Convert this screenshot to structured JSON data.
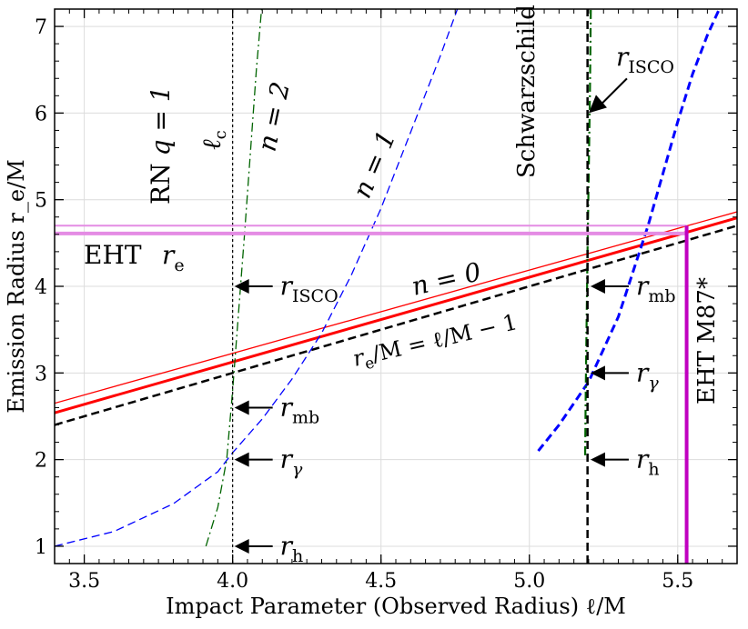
{
  "chart_data": {
    "type": "line",
    "xlabel": "Impact Parameter (Observed Radius) ℓ/M",
    "ylabel": "Emission Radius r_e/M",
    "xlim": [
      3.4,
      5.7
    ],
    "ylim": [
      0.8,
      7.2
    ],
    "grid": true,
    "xticks": [
      3.5,
      4.0,
      4.5,
      5.0,
      5.5
    ],
    "xtick_labels": [
      "3.5",
      "4.0",
      "4.5",
      "5.0",
      "5.5"
    ],
    "yticks": [
      1,
      2,
      3,
      4,
      5,
      6,
      7
    ],
    "ytick_labels": [
      "1",
      "2",
      "3",
      "4",
      "5",
      "6",
      "7"
    ],
    "series": [
      {
        "name": "RN n=0 (thin red)",
        "color": "#ff0000",
        "style": "solid",
        "width": 1.3,
        "x": [
          3.4,
          5.7
        ],
        "y": [
          2.65,
          4.86
        ]
      },
      {
        "name": "RN n=0 (thick red)",
        "color": "#ff0000",
        "style": "solid",
        "width": 3,
        "x": [
          3.4,
          5.7
        ],
        "y": [
          2.54,
          4.79
        ]
      },
      {
        "name": "re/M = ℓ/M − 1",
        "color": "#000000",
        "style": "dashed",
        "width": 2.5,
        "x": [
          3.4,
          5.7
        ],
        "y": [
          2.4,
          4.7
        ]
      },
      {
        "name": "RN n=1",
        "color": "#0000ff",
        "style": "dashed",
        "width": 1.3,
        "x": [
          3.4,
          3.6,
          3.8,
          3.95,
          4.0,
          4.1,
          4.2,
          4.3,
          4.4,
          4.5,
          4.6,
          4.7,
          4.8
        ],
        "y": [
          1.0,
          1.17,
          1.49,
          1.86,
          2.08,
          2.47,
          2.93,
          3.46,
          4.13,
          4.9,
          5.78,
          6.66,
          7.6
        ]
      },
      {
        "name": "RN n=2",
        "color": "#006400",
        "style": "dashdot",
        "width": 1.3,
        "x": [
          3.91,
          3.95,
          3.98,
          4.0,
          4.02,
          4.04,
          4.06,
          4.08,
          4.1
        ],
        "y": [
          1.0,
          1.45,
          2.0,
          2.8,
          3.7,
          4.6,
          5.55,
          6.5,
          7.3
        ]
      },
      {
        "name": "Schwarzschild n=1",
        "color": "#0000ff",
        "style": "dashed",
        "width": 3,
        "x": [
          5.03,
          5.1,
          5.2,
          5.3,
          5.4,
          5.5,
          5.55,
          5.6,
          5.64
        ],
        "y": [
          2.1,
          2.4,
          2.9,
          3.65,
          4.7,
          5.9,
          6.45,
          6.9,
          7.2
        ]
      },
      {
        "name": "Schwarzschild n=2",
        "color": "#006400",
        "style": "dashdot",
        "width": 2.2,
        "x": [
          5.188,
          5.19,
          5.193,
          5.196,
          5.2,
          5.204,
          5.207
        ],
        "y": [
          2.05,
          2.8,
          3.6,
          4.4,
          5.3,
          6.2,
          7.2
        ]
      },
      {
        "name": "Schwarzschild ℓc",
        "color": "#000000",
        "style": "dashed",
        "width": 2.5,
        "x": [
          5.196,
          5.196
        ],
        "y": [
          0.8,
          7.2
        ]
      },
      {
        "name": "RN ℓc",
        "color": "#000000",
        "style": "dotted",
        "width": 1.2,
        "x": [
          4.0,
          4.0
        ],
        "y": [
          0.8,
          7.2
        ]
      },
      {
        "name": "EHT re (upper)",
        "color": "#e48ce4",
        "style": "solid",
        "width": 2,
        "x": [
          3.4,
          5.53
        ],
        "y": [
          4.7,
          4.7
        ]
      },
      {
        "name": "EHT re (lower)",
        "color": "#e48ce4",
        "style": "solid",
        "width": 4,
        "x": [
          3.4,
          5.53
        ],
        "y": [
          4.61,
          4.61
        ]
      },
      {
        "name": "EHT M87*",
        "color": "#c000c0",
        "style": "solid",
        "width": 4,
        "x": [
          5.53,
          5.53
        ],
        "y": [
          0.8,
          4.7
        ]
      }
    ],
    "annotations": {
      "rn_label": "RN",
      "rn_q": "q = 1",
      "lc_main": "ℓ",
      "lc_sub": "c",
      "n2": "n = 2",
      "n1": "n = 1",
      "n0": "n = 0",
      "schwarzschild": "Schwarzschild",
      "eht": "EHT",
      "re_main": "r",
      "re_sub": "e",
      "relation_main": "r",
      "relation_sub": "e",
      "relation_rest": "/M = ℓ/M − 1",
      "eht_m87": "EHT M87*",
      "r": "r",
      "isco": "ISCO",
      "mb": "mb",
      "gamma": "γ",
      "h": "h"
    },
    "arrows": [
      {
        "label": "r_ISCO",
        "x_tip": 4.0,
        "y": 4.0,
        "side": "RN"
      },
      {
        "label": "r_mb",
        "x_tip": 4.0,
        "y": 2.6,
        "side": "RN"
      },
      {
        "label": "r_γ",
        "x_tip": 4.0,
        "y": 2.0,
        "side": "RN"
      },
      {
        "label": "r_h",
        "x_tip": 4.0,
        "y": 1.0,
        "side": "RN"
      },
      {
        "label": "r_ISCO",
        "x_tip": 5.2,
        "y": 6.0,
        "side": "Schwarzschild"
      },
      {
        "label": "r_mb",
        "x_tip": 5.2,
        "y": 4.0,
        "side": "Schwarzschild"
      },
      {
        "label": "r_γ",
        "x_tip": 5.2,
        "y": 3.0,
        "side": "Schwarzschild"
      },
      {
        "label": "r_h",
        "x_tip": 5.2,
        "y": 2.0,
        "side": "Schwarzschild"
      }
    ]
  }
}
